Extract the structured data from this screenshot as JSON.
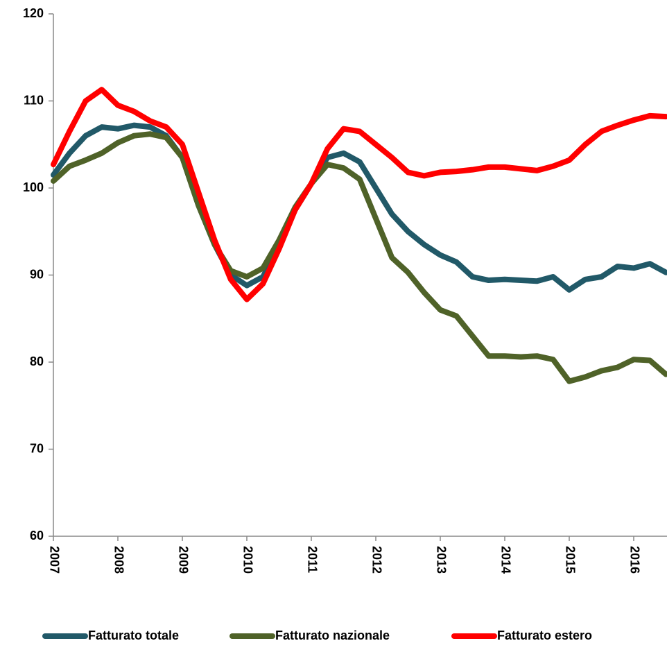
{
  "chart_data": {
    "type": "line",
    "categories": [
      "2007",
      null,
      null,
      null,
      "2008",
      null,
      null,
      null,
      "2009",
      null,
      null,
      null,
      "2010",
      null,
      null,
      null,
      "2011",
      null,
      null,
      null,
      "2012",
      null,
      null,
      null,
      "2013",
      null,
      null,
      null,
      "2014",
      null,
      null,
      null,
      "2015",
      null,
      null,
      null,
      "2016",
      null,
      null
    ],
    "series": [
      {
        "name": "Fatturato totale",
        "color": "#215968",
        "values": [
          101.5,
          104,
          106,
          107,
          106.8,
          107.2,
          107,
          106,
          103.5,
          98,
          93.5,
          90,
          88.8,
          89.8,
          93.5,
          97.5,
          100.5,
          103.5,
          104,
          103,
          100,
          97,
          95,
          93.5,
          92.3,
          91.5,
          89.8,
          89.4,
          89.5,
          89.4,
          89.3,
          89.8,
          88.3,
          89.5,
          89.8,
          91,
          90.8,
          91.3,
          90.3
        ]
      },
      {
        "name": "Fatturato nazionale",
        "color": "#4f6228",
        "values": [
          100.8,
          102.5,
          103.2,
          104,
          105.2,
          106,
          106.2,
          105.8,
          103.5,
          98,
          93.5,
          90.5,
          89.8,
          90.8,
          94,
          97.8,
          100.5,
          102.7,
          102.3,
          101,
          96.5,
          92,
          90.3,
          88,
          86,
          85.3,
          83,
          80.7,
          80.7,
          80.6,
          80.7,
          80.3,
          77.8,
          78.3,
          79,
          79.4,
          80.3,
          80.2,
          78.6
        ]
      },
      {
        "name": "Fatturato estero",
        "color": "#ff0000",
        "values": [
          102.7,
          106.5,
          110,
          111.3,
          109.5,
          108.8,
          107.7,
          107,
          105,
          99.5,
          94,
          89.5,
          87.2,
          89,
          93,
          97.5,
          100.5,
          104.5,
          106.8,
          106.5,
          105,
          103.5,
          101.8,
          101.4,
          101.8,
          101.9,
          102.1,
          102.4,
          102.4,
          102.2,
          102,
          102.5,
          103.2,
          105,
          106.5,
          107.2,
          107.8,
          108.3,
          108.2
        ]
      }
    ],
    "ylim": [
      60,
      120
    ],
    "yticks": [
      60,
      70,
      80,
      90,
      100,
      110,
      120
    ],
    "grid": false,
    "legend": "bottom"
  }
}
